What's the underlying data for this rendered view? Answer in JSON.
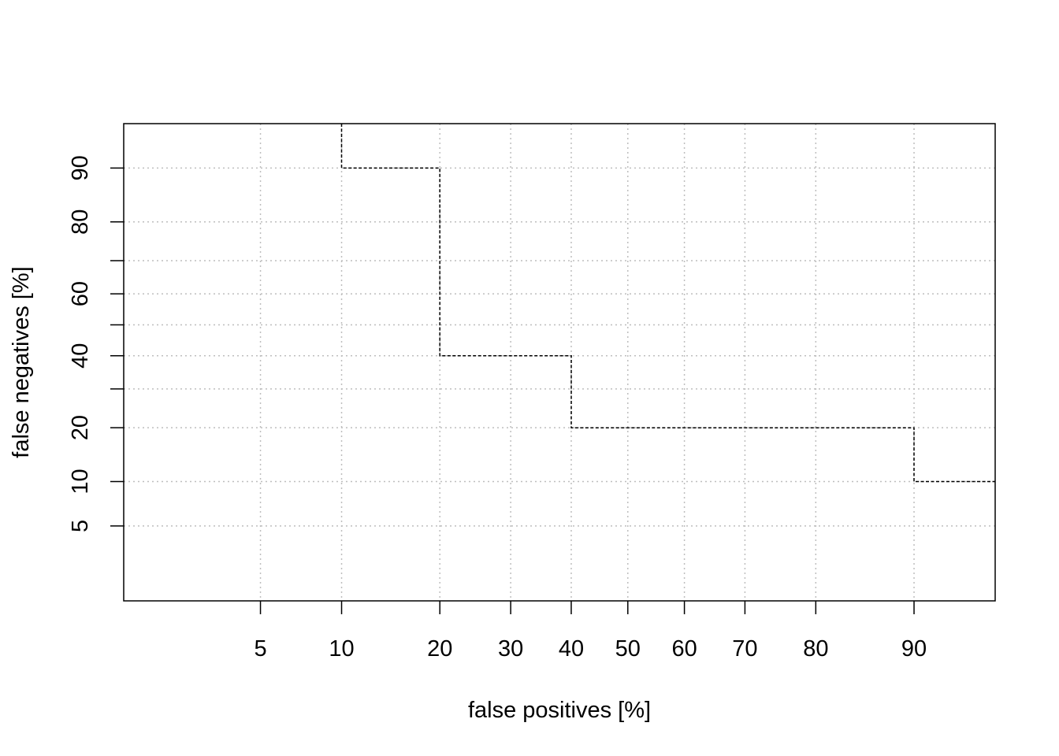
{
  "chart_data": {
    "type": "line",
    "subtype": "DET step curve",
    "title": "",
    "xlabel": "false positives [%]",
    "ylabel": "false negatives [%]",
    "x_scale": "normal-deviate (probit)",
    "y_scale": "normal-deviate (probit)",
    "xlim": [
      1.2,
      95
    ],
    "ylim": [
      1.2,
      95
    ],
    "x_ticks": [
      5,
      10,
      20,
      30,
      40,
      50,
      60,
      70,
      80,
      90
    ],
    "y_ticks": [
      5,
      10,
      20,
      30,
      40,
      50,
      60,
      70,
      80,
      90
    ],
    "y_tick_labels": [
      "5",
      "10",
      "20",
      "",
      "40",
      "",
      "60",
      "",
      "80",
      "90"
    ],
    "grid": true,
    "colors": {
      "line": "#000000",
      "grid": "#bebebe",
      "frame": "#000000"
    },
    "series": [
      {
        "line_style": "dashed step",
        "points": [
          [
            10,
            95
          ],
          [
            10,
            90
          ],
          [
            20,
            90
          ],
          [
            20,
            40
          ],
          [
            40,
            40
          ],
          [
            40,
            20
          ],
          [
            90,
            20
          ],
          [
            90,
            10
          ],
          [
            95,
            10
          ]
        ]
      }
    ]
  }
}
